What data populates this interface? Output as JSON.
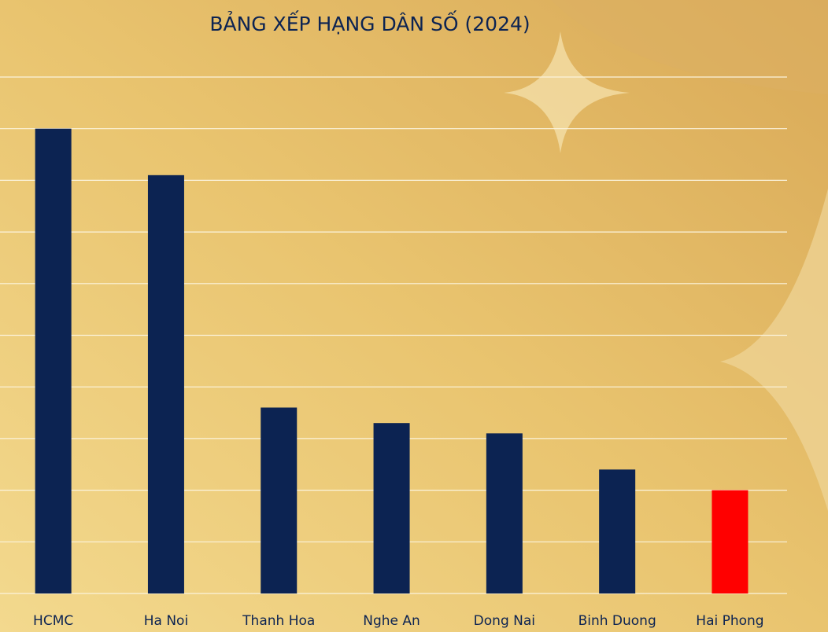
{
  "chart_data": {
    "type": "bar",
    "title": "BẢNG XẾP HẠNG DÂN SỐ (2024)",
    "categories": [
      "HCMC",
      "Ha Noi",
      "Thanh Hoa",
      "Nghe An",
      "Dong Nai",
      "Binh Duong",
      "Hai Phong"
    ],
    "values": [
      9.0,
      8.1,
      3.6,
      3.3,
      3.1,
      2.4,
      2.0
    ],
    "colors": [
      "#0c2352",
      "#0c2352",
      "#0c2352",
      "#0c2352",
      "#0c2352",
      "#0c2352",
      "#ff0000"
    ],
    "ylim": [
      0,
      10
    ],
    "yticks": [
      0,
      1,
      2,
      3,
      4,
      5,
      6,
      7,
      8,
      9,
      10
    ],
    "grid": true
  }
}
